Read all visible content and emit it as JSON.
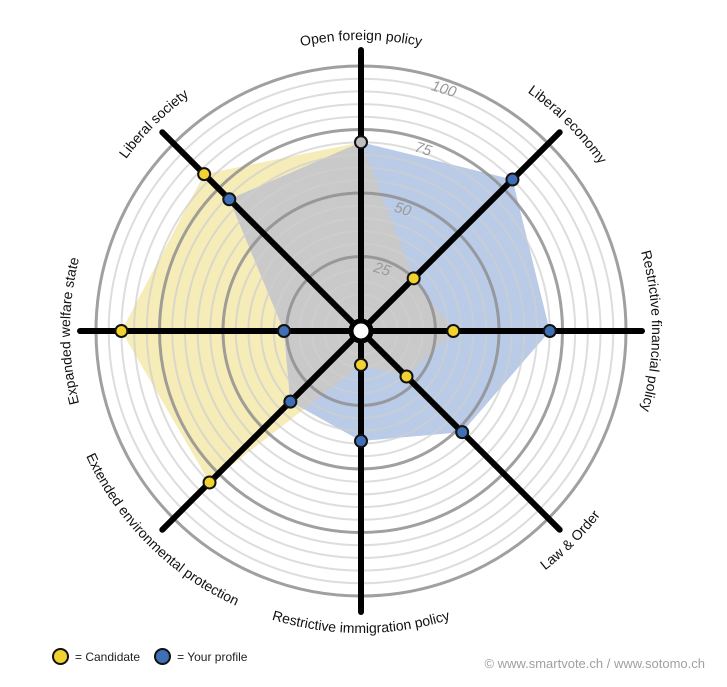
{
  "chart_data": {
    "type": "radar",
    "title": "",
    "axes": [
      "Open foreign policy",
      "Liberal economy",
      "Restrictive financial policy",
      "Law & Order",
      "Restrictive immigration policy",
      "Extended environmental protection",
      "Expanded welfare state",
      "Liberal society"
    ],
    "series": [
      {
        "name": "Candidate",
        "color": "#f2d22e",
        "fill": "#f6ecb8",
        "values": [
          70,
          25,
          32,
          21,
          9,
          80,
          90,
          83
        ]
      },
      {
        "name": "Your profile",
        "color": "#3f6fb5",
        "fill": "#b9cbe6",
        "values": [
          70,
          80,
          70,
          52,
          39,
          35,
          26,
          69
        ]
      }
    ],
    "overlap_color": "#bfbfbf",
    "range": [
      0,
      100
    ],
    "major_ticks": [
      25,
      50,
      75,
      100
    ],
    "minor_tick_step": 5,
    "tick_labels": [
      "25",
      "50",
      "75",
      "100"
    ],
    "grid": true,
    "legend_position": "bottom-left"
  },
  "legend": {
    "candidate_label": "= Candidate",
    "profile_label": "= Your profile",
    "candidate_color": "#f2d22e",
    "profile_color": "#3f6fb5"
  },
  "footer": {
    "credit": "© www.smartvote.ch / www.sotomo.ch"
  }
}
